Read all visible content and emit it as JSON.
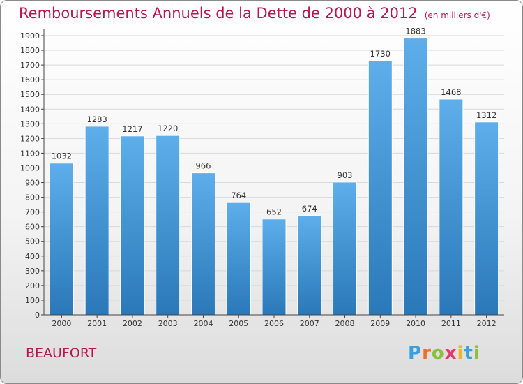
{
  "header": {
    "title": "Remboursements Annuels de la Dette de 2000 à 2012",
    "subtitle": "(en milliers d'€)"
  },
  "footer": {
    "city": "BEAUFORT",
    "logo_letters": [
      "P",
      "r",
      "o",
      "x",
      "i",
      "t",
      "i"
    ]
  },
  "chart_data": {
    "type": "bar",
    "title": "Remboursements Annuels de la Dette de 2000 à 2012",
    "subtitle": "(en milliers d'€)",
    "categories": [
      "2000",
      "2001",
      "2002",
      "2003",
      "2004",
      "2005",
      "2006",
      "2007",
      "2008",
      "2009",
      "2010",
      "2011",
      "2012"
    ],
    "values": [
      1032,
      1283,
      1217,
      1220,
      966,
      764,
      652,
      674,
      903,
      1730,
      1883,
      1468,
      1312
    ],
    "ylim": [
      0,
      1900
    ],
    "ytick_step": 100,
    "grid": "horizontal",
    "xlabel": "",
    "ylabel": "",
    "colors": {
      "bar_top": "#5daeea",
      "bar_bottom": "#2a78b8",
      "axis": "#444444",
      "grid": "#d8d8d8"
    }
  }
}
